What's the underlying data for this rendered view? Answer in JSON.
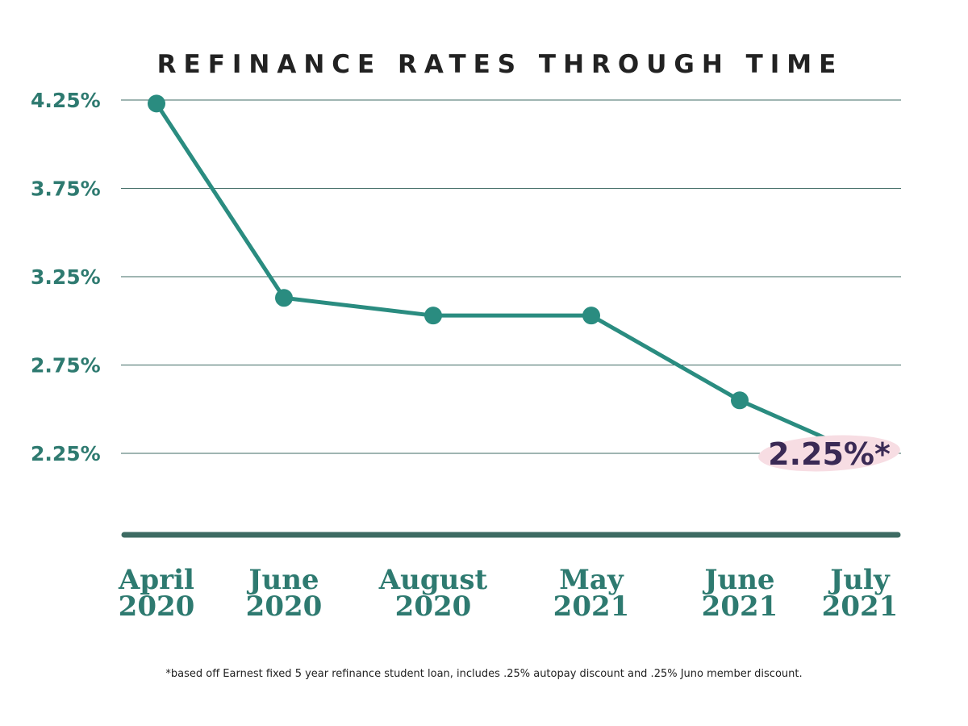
{
  "title": "REFINANCE RATES THROUGH TIME",
  "footnote": "*based off Earnest fixed 5 year refinance student loan, includes .25% autopay discount and .25% Juno member discount.",
  "colors": {
    "line": "#2a8c80",
    "grid": "#3f6b64",
    "axis": "#3d6b63",
    "tick_text": "#2e7a70",
    "callout_bg": "#f7dde3",
    "callout_text": "#3a2a55"
  },
  "chart_data": {
    "type": "line",
    "title": "REFINANCE RATES THROUGH TIME",
    "categories": [
      [
        "April",
        "2020"
      ],
      [
        "June",
        "2020"
      ],
      [
        "August",
        "2020"
      ],
      [
        "May",
        "2021"
      ],
      [
        "June",
        "2021"
      ],
      [
        "July",
        "2021"
      ]
    ],
    "series": [
      {
        "values": [
          4.23,
          3.13,
          3.03,
          3.03,
          2.55,
          2.25
        ]
      }
    ],
    "y_ticks": [
      "4.25%",
      "3.75%",
      "3.25%",
      "2.75%",
      "2.25%"
    ],
    "y_tick_values": [
      4.25,
      3.75,
      3.25,
      2.75,
      2.25
    ],
    "ylim": [
      1.8,
      4.25
    ],
    "grid": true,
    "annotation": {
      "label": "2.25%*",
      "point_index": 5
    }
  }
}
